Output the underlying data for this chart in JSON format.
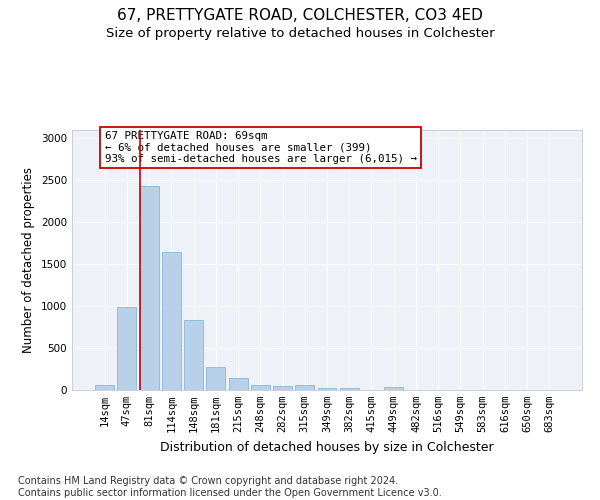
{
  "title1": "67, PRETTYGATE ROAD, COLCHESTER, CO3 4ED",
  "title2": "Size of property relative to detached houses in Colchester",
  "xlabel": "Distribution of detached houses by size in Colchester",
  "ylabel": "Number of detached properties",
  "categories": [
    "14sqm",
    "47sqm",
    "81sqm",
    "114sqm",
    "148sqm",
    "181sqm",
    "215sqm",
    "248sqm",
    "282sqm",
    "315sqm",
    "349sqm",
    "382sqm",
    "415sqm",
    "449sqm",
    "482sqm",
    "516sqm",
    "549sqm",
    "583sqm",
    "616sqm",
    "650sqm",
    "683sqm"
  ],
  "values": [
    60,
    990,
    2430,
    1650,
    830,
    280,
    140,
    55,
    45,
    55,
    20,
    20,
    0,
    35,
    0,
    0,
    0,
    0,
    0,
    0,
    0
  ],
  "bar_color": "#b8d0e8",
  "bar_edge_color": "#7aafd4",
  "vline_color": "#cc0000",
  "vline_x_index": 2,
  "annotation_text": "67 PRETTYGATE ROAD: 69sqm\n← 6% of detached houses are smaller (399)\n93% of semi-detached houses are larger (6,015) →",
  "annotation_box_color": "#ffffff",
  "annotation_box_edge": "#cc0000",
  "ylim": [
    0,
    3100
  ],
  "yticks": [
    0,
    500,
    1000,
    1500,
    2000,
    2500,
    3000
  ],
  "bg_color": "#eef2f8",
  "footer": "Contains HM Land Registry data © Crown copyright and database right 2024.\nContains public sector information licensed under the Open Government Licence v3.0.",
  "title_fontsize": 11,
  "subtitle_fontsize": 9.5,
  "footer_fontsize": 7,
  "ylabel_fontsize": 8.5,
  "xlabel_fontsize": 9,
  "tick_fontsize": 7.5
}
